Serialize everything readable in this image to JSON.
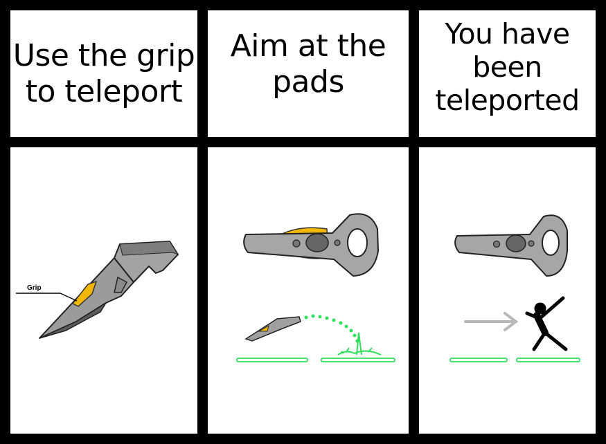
{
  "panels": [
    {
      "caption_lines": [
        "Use the grip",
        "to teleport"
      ]
    },
    {
      "caption_lines": [
        "Aim at the",
        "pads"
      ]
    },
    {
      "caption_lines": [
        "You have",
        "been",
        "teleported"
      ]
    }
  ],
  "illustrations": {
    "grip_label": "Grip",
    "icons": [
      "vr-controller-icon",
      "teleport-arc-icon",
      "teleport-pad-icon",
      "arrow-icon",
      "person-figure-icon"
    ]
  },
  "colors": {
    "background": "#000000",
    "panel": "#ffffff",
    "controller_body": "#9b9b9b",
    "controller_dark": "#5c5c5c",
    "grip_highlight": "#f2b705",
    "teleport_green": "#2fe05a",
    "arrow_gray": "#b8b8b8"
  }
}
